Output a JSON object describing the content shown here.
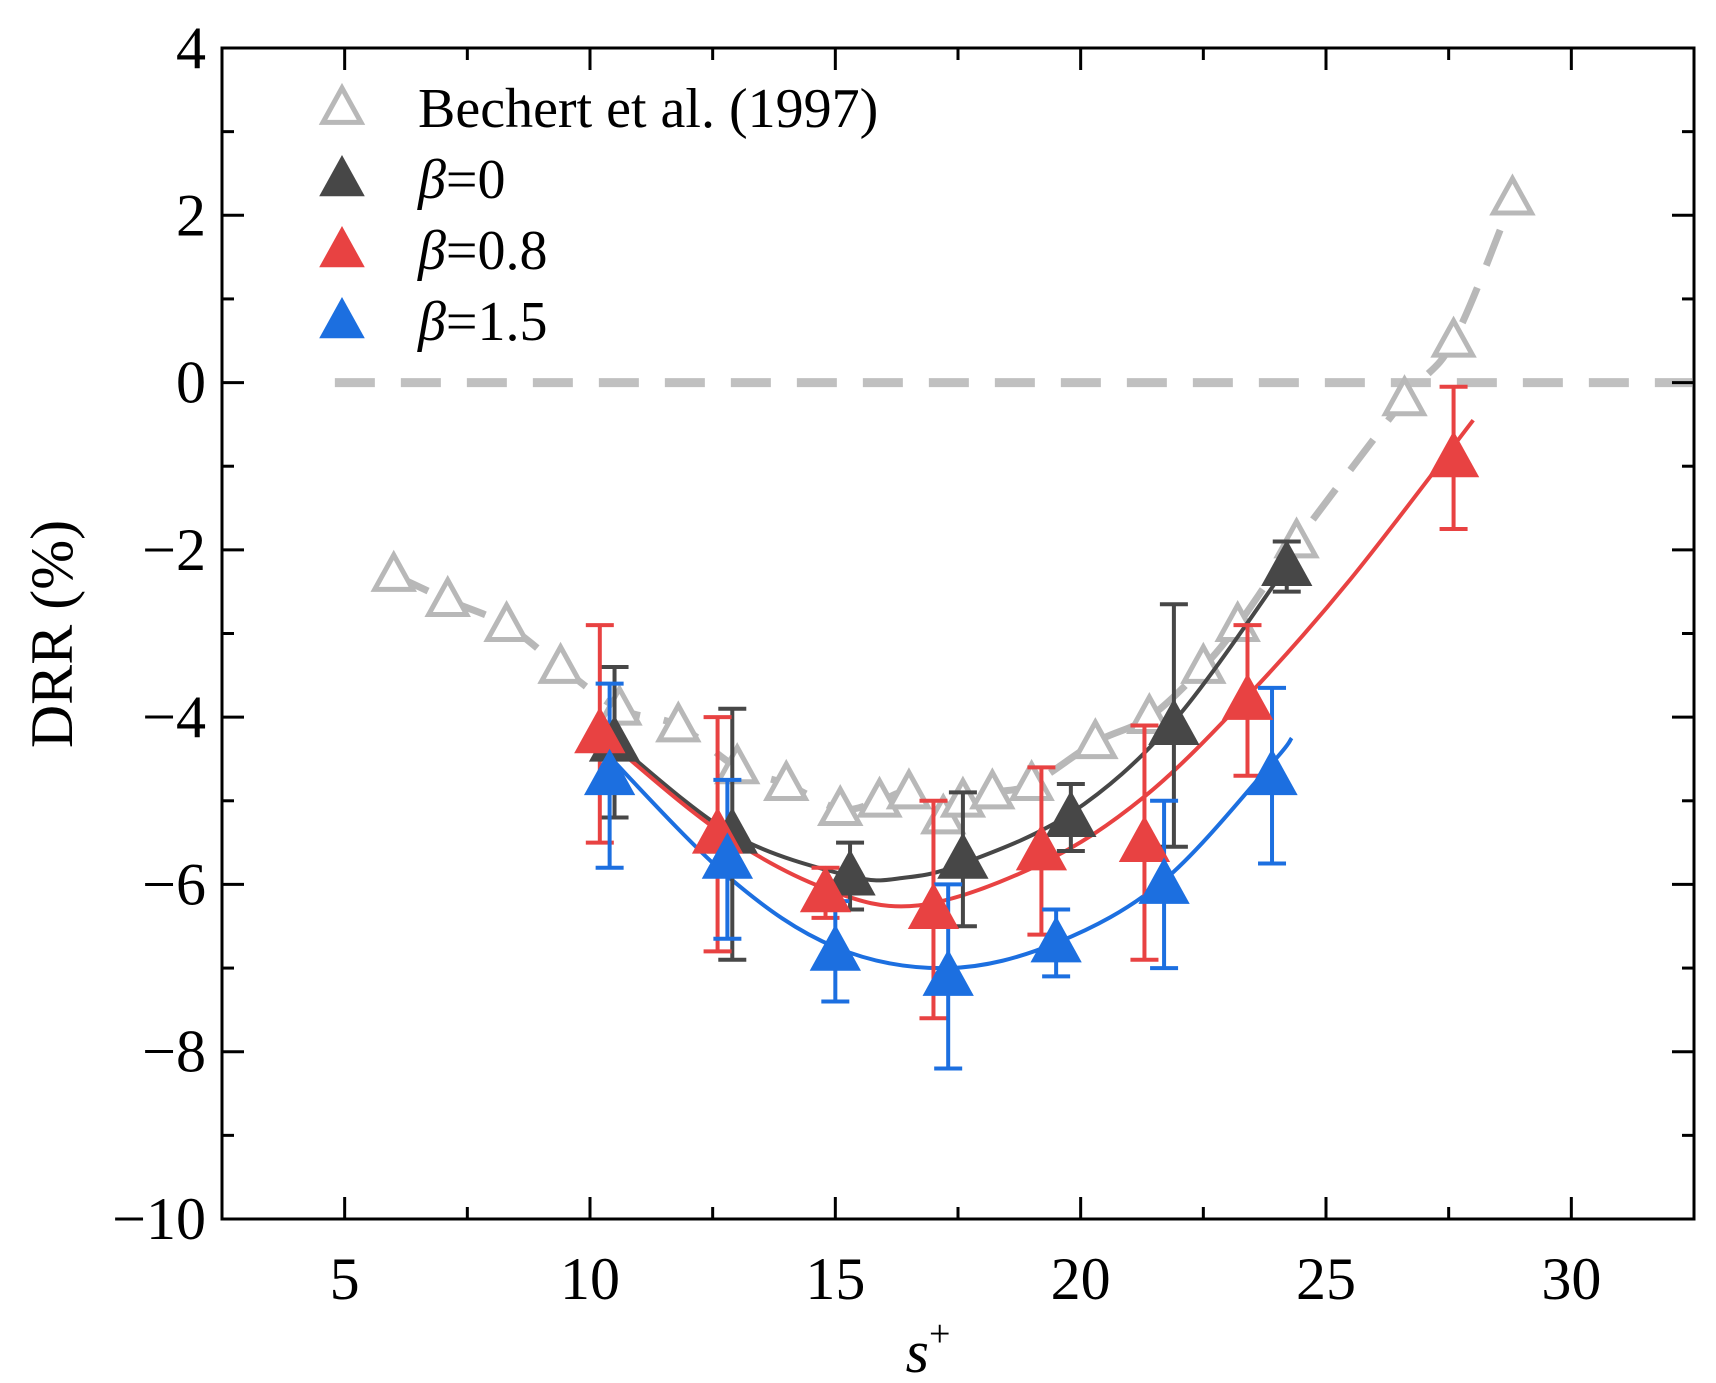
{
  "chart_data": {
    "type": "scatter",
    "title": "",
    "xlabel": "s",
    "xlabel_sup": "+",
    "ylabel": "DRR (%)",
    "xlim": [
      2.5,
      32.5
    ],
    "ylim": [
      -10,
      4
    ],
    "x_ticks": [
      5,
      10,
      15,
      20,
      25,
      30
    ],
    "x_tick_labels": [
      "5",
      "10",
      "15",
      "20",
      "25",
      "30"
    ],
    "y_ticks": [
      -10,
      -8,
      -6,
      -4,
      -2,
      0,
      2,
      4
    ],
    "y_tick_labels": [
      "−10",
      "−8",
      "−6",
      "−4",
      "−2",
      "0",
      "2",
      "4"
    ],
    "grid": false,
    "legend_position": "top-left",
    "reference_line": {
      "y": 0,
      "color": "#c0c0c0",
      "style": "dashed"
    },
    "series": [
      {
        "name": "Bechert et al. (1997)",
        "legend_label": "Bechert et al. (1997)",
        "color": "#b8b8b8",
        "marker": "open-triangle",
        "line": "dashed",
        "x": [
          6.0,
          7.1,
          8.3,
          9.4,
          10.6,
          11.8,
          13.0,
          14.0,
          15.1,
          15.9,
          16.5,
          17.2,
          17.6,
          18.2,
          19.0,
          20.3,
          21.4,
          22.5,
          23.2,
          24.4,
          26.6,
          27.6,
          28.8
        ],
        "y": [
          -2.3,
          -2.6,
          -2.9,
          -3.4,
          -3.9,
          -4.1,
          -4.6,
          -4.8,
          -5.1,
          -5.0,
          -4.9,
          -5.2,
          -5.0,
          -4.9,
          -4.8,
          -4.3,
          -4.0,
          -3.4,
          -2.9,
          -1.9,
          -0.2,
          0.5,
          2.2
        ]
      },
      {
        "name": "beta=0",
        "legend_symbol": "β",
        "legend_value": "=0",
        "color": "#474747",
        "marker": "filled-triangle",
        "x": [
          10.5,
          12.9,
          15.3,
          17.6,
          19.8,
          21.9,
          24.2
        ],
        "y": [
          -4.3,
          -5.4,
          -5.9,
          -5.7,
          -5.2,
          -4.1,
          -2.2
        ],
        "err": [
          0.9,
          1.5,
          0.4,
          0.8,
          0.4,
          1.45,
          0.3
        ],
        "fit": [
          [
            10.5,
            -4.3
          ],
          [
            12.9,
            -5.4
          ],
          [
            15.3,
            -5.9
          ],
          [
            16.4,
            -5.92
          ],
          [
            17.6,
            -5.75
          ],
          [
            19.8,
            -5.15
          ],
          [
            21.9,
            -4.05
          ],
          [
            24.2,
            -2.2
          ]
        ]
      },
      {
        "name": "beta=0.8",
        "legend_symbol": "β",
        "legend_value": "=0.8",
        "color": "#e84242",
        "marker": "filled-triangle",
        "x": [
          10.2,
          12.6,
          14.8,
          17.0,
          19.2,
          21.3,
          23.4,
          27.6
        ],
        "y": [
          -4.2,
          -5.4,
          -6.1,
          -6.3,
          -5.6,
          -5.5,
          -3.8,
          -0.9
        ],
        "err": [
          1.3,
          1.4,
          0.3,
          1.3,
          1.0,
          1.4,
          0.9,
          0.85
        ],
        "fit": [
          [
            10.2,
            -4.2
          ],
          [
            12.6,
            -5.35
          ],
          [
            14.8,
            -6.05
          ],
          [
            16.7,
            -6.25
          ],
          [
            19.2,
            -5.75
          ],
          [
            21.3,
            -4.95
          ],
          [
            23.4,
            -3.75
          ],
          [
            25.5,
            -2.35
          ],
          [
            28.0,
            -0.45
          ]
        ]
      },
      {
        "name": "beta=1.5",
        "legend_symbol": "β",
        "legend_value": "=1.5",
        "color": "#1c6fe0",
        "marker": "filled-triangle",
        "x": [
          10.4,
          12.8,
          15.0,
          17.3,
          19.5,
          21.7,
          23.9
        ],
        "y": [
          -4.7,
          -5.7,
          -6.8,
          -7.1,
          -6.7,
          -6.0,
          -4.7
        ],
        "err": [
          1.1,
          0.95,
          0.6,
          1.1,
          0.4,
          1.0,
          1.05
        ],
        "fit": [
          [
            10.2,
            -4.35
          ],
          [
            12.8,
            -5.9
          ],
          [
            15.0,
            -6.75
          ],
          [
            17.3,
            -7.0
          ],
          [
            19.5,
            -6.7
          ],
          [
            21.7,
            -5.95
          ],
          [
            23.9,
            -4.55
          ],
          [
            24.3,
            -4.25
          ]
        ]
      }
    ]
  }
}
